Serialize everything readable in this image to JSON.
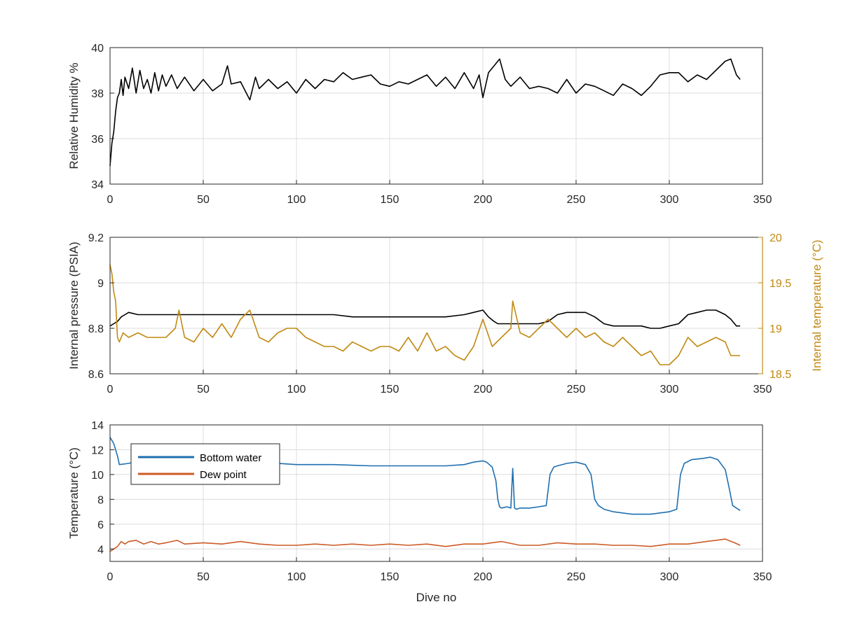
{
  "colors": {
    "humidity": "#000000",
    "pressure": "#000000",
    "internal_temperature": "#c08a12",
    "right_axis": "#c08a12",
    "bottom_water": "#1f6fb0",
    "dew_point": "#cc5b27"
  },
  "chart_data": [
    {
      "type": "line",
      "ylabel": "Relative Humidity %",
      "xlim": [
        0,
        350
      ],
      "ylim": [
        34,
        40
      ],
      "xticks": [
        0,
        50,
        100,
        150,
        200,
        250,
        300,
        350
      ],
      "yticks": [
        34,
        36,
        38,
        40
      ],
      "grid": true,
      "series": [
        {
          "x": [
            0,
            1,
            2,
            3,
            4,
            5,
            6,
            7,
            8,
            10,
            12,
            14,
            16,
            18,
            20,
            22,
            24,
            26,
            28,
            30,
            33,
            36,
            40,
            45,
            50,
            55,
            60,
            63,
            65,
            70,
            75,
            78,
            80,
            85,
            90,
            95,
            100,
            105,
            110,
            115,
            120,
            125,
            130,
            135,
            140,
            145,
            150,
            155,
            160,
            165,
            170,
            175,
            180,
            185,
            190,
            195,
            198,
            200,
            203,
            206,
            209,
            212,
            215,
            220,
            225,
            230,
            235,
            240,
            245,
            250,
            255,
            260,
            265,
            270,
            275,
            280,
            285,
            290,
            295,
            300,
            305,
            310,
            315,
            320,
            325,
            330,
            333,
            336,
            338
          ],
          "y": [
            34.8,
            35.8,
            36.3,
            37.2,
            37.8,
            38.0,
            38.6,
            37.9,
            38.7,
            38.2,
            39.1,
            38.0,
            39.0,
            38.2,
            38.6,
            38.0,
            38.9,
            38.1,
            38.8,
            38.3,
            38.8,
            38.2,
            38.7,
            38.1,
            38.6,
            38.1,
            38.4,
            39.2,
            38.4,
            38.5,
            37.7,
            38.7,
            38.2,
            38.6,
            38.2,
            38.5,
            38.0,
            38.6,
            38.2,
            38.6,
            38.5,
            38.9,
            38.6,
            38.7,
            38.8,
            38.4,
            38.3,
            38.5,
            38.4,
            38.6,
            38.8,
            38.3,
            38.7,
            38.2,
            38.9,
            38.2,
            38.8,
            37.8,
            38.9,
            39.2,
            39.5,
            38.6,
            38.3,
            38.7,
            38.2,
            38.3,
            38.2,
            38.0,
            38.6,
            38.0,
            38.4,
            38.3,
            38.1,
            37.9,
            38.4,
            38.2,
            37.9,
            38.3,
            38.8,
            38.9,
            38.9,
            38.5,
            38.8,
            38.6,
            39.0,
            39.4,
            39.5,
            38.8,
            38.6
          ]
        }
      ]
    },
    {
      "type": "line",
      "ylabel": "Internal pressure (PSIA)",
      "ylabel_right": "Internal temperature (°C)",
      "xlim": [
        0,
        350
      ],
      "ylim": [
        8.6,
        9.2
      ],
      "ylim_right": [
        18.5,
        20
      ],
      "xticks": [
        0,
        50,
        100,
        150,
        200,
        250,
        300,
        350
      ],
      "yticks": [
        8.6,
        8.8,
        9,
        9.2
      ],
      "yticks_right": [
        18.5,
        19,
        19.5,
        20
      ],
      "grid": true,
      "series": [
        {
          "axis": "left",
          "x": [
            0,
            2,
            4,
            6,
            8,
            10,
            15,
            20,
            30,
            40,
            50,
            60,
            70,
            80,
            90,
            100,
            110,
            120,
            130,
            140,
            150,
            160,
            170,
            180,
            190,
            195,
            200,
            203,
            206,
            208,
            210,
            212,
            215,
            220,
            225,
            230,
            235,
            240,
            245,
            250,
            255,
            260,
            265,
            270,
            275,
            280,
            285,
            290,
            295,
            300,
            305,
            310,
            315,
            320,
            325,
            330,
            333,
            336,
            338
          ],
          "y": [
            8.81,
            8.82,
            8.83,
            8.85,
            8.86,
            8.87,
            8.86,
            8.86,
            8.86,
            8.86,
            8.86,
            8.86,
            8.86,
            8.86,
            8.86,
            8.86,
            8.86,
            8.86,
            8.85,
            8.85,
            8.85,
            8.85,
            8.85,
            8.85,
            8.86,
            8.87,
            8.88,
            8.85,
            8.83,
            8.82,
            8.82,
            8.82,
            8.82,
            8.82,
            8.82,
            8.82,
            8.83,
            8.86,
            8.87,
            8.87,
            8.87,
            8.85,
            8.82,
            8.81,
            8.81,
            8.81,
            8.81,
            8.8,
            8.8,
            8.81,
            8.82,
            8.86,
            8.87,
            8.88,
            8.88,
            8.86,
            8.84,
            8.81,
            8.81
          ]
        },
        {
          "axis": "right",
          "x": [
            0,
            1,
            2,
            3,
            4,
            5,
            7,
            10,
            15,
            20,
            25,
            30,
            35,
            37,
            40,
            45,
            50,
            55,
            60,
            65,
            70,
            75,
            80,
            85,
            90,
            95,
            100,
            105,
            110,
            115,
            120,
            125,
            130,
            135,
            140,
            145,
            150,
            155,
            160,
            165,
            170,
            175,
            180,
            185,
            190,
            195,
            200,
            205,
            210,
            215,
            216,
            220,
            225,
            230,
            235,
            240,
            245,
            250,
            255,
            260,
            265,
            270,
            275,
            280,
            285,
            290,
            295,
            300,
            305,
            310,
            315,
            320,
            325,
            330,
            333,
            336,
            338
          ],
          "y": [
            19.7,
            19.6,
            19.4,
            19.3,
            18.9,
            18.85,
            18.95,
            18.9,
            18.95,
            18.9,
            18.9,
            18.9,
            19.0,
            19.2,
            18.9,
            18.85,
            19.0,
            18.9,
            19.05,
            18.9,
            19.1,
            19.2,
            18.9,
            18.85,
            18.95,
            19.0,
            19.0,
            18.9,
            18.85,
            18.8,
            18.8,
            18.75,
            18.85,
            18.8,
            18.75,
            18.8,
            18.8,
            18.75,
            18.9,
            18.75,
            18.95,
            18.75,
            18.8,
            18.7,
            18.65,
            18.8,
            19.1,
            18.8,
            18.9,
            19.0,
            19.3,
            18.95,
            18.9,
            19.0,
            19.1,
            19.0,
            18.9,
            19.0,
            18.9,
            18.95,
            18.85,
            18.8,
            18.9,
            18.8,
            18.7,
            18.75,
            18.6,
            18.6,
            18.7,
            18.9,
            18.8,
            18.85,
            18.9,
            18.85,
            18.7,
            18.7,
            18.7
          ]
        }
      ]
    },
    {
      "type": "line",
      "xlabel": "Dive no",
      "ylabel": "Temperature (°C)",
      "xlim": [
        0,
        350
      ],
      "ylim": [
        3,
        14
      ],
      "xticks": [
        0,
        50,
        100,
        150,
        200,
        250,
        300,
        350
      ],
      "yticks": [
        4,
        6,
        8,
        10,
        12,
        14
      ],
      "grid": true,
      "legend_position": "top-left",
      "series": [
        {
          "name": "Bottom water",
          "x": [
            0,
            2,
            4,
            5,
            10,
            15,
            20,
            40,
            60,
            80,
            100,
            120,
            140,
            160,
            180,
            190,
            195,
            200,
            202,
            205,
            207,
            208,
            209,
            210,
            213,
            215,
            216,
            217,
            218,
            220,
            225,
            230,
            234,
            236,
            238,
            240,
            245,
            250,
            255,
            258,
            260,
            262,
            265,
            270,
            280,
            290,
            300,
            304,
            306,
            308,
            312,
            318,
            322,
            326,
            328,
            330,
            332,
            334,
            336,
            338
          ],
          "y": [
            13.0,
            12.5,
            11.5,
            10.8,
            10.9,
            11.1,
            11.0,
            11.0,
            11.0,
            11.0,
            10.8,
            10.8,
            10.7,
            10.7,
            10.7,
            10.8,
            11.0,
            11.1,
            11.0,
            10.6,
            9.5,
            8.0,
            7.4,
            7.3,
            7.4,
            7.3,
            10.5,
            7.3,
            7.2,
            7.3,
            7.3,
            7.4,
            7.5,
            10.0,
            10.6,
            10.7,
            10.9,
            11.0,
            10.8,
            10.0,
            8.0,
            7.5,
            7.2,
            7.0,
            6.8,
            6.8,
            7.0,
            7.2,
            10.0,
            10.9,
            11.2,
            11.3,
            11.4,
            11.2,
            10.8,
            10.4,
            9.0,
            7.5,
            7.3,
            7.1
          ]
        },
        {
          "name": "Dew point",
          "x": [
            0,
            2,
            4,
            6,
            8,
            10,
            14,
            18,
            22,
            26,
            30,
            36,
            40,
            50,
            60,
            70,
            80,
            90,
            100,
            110,
            120,
            130,
            140,
            150,
            160,
            170,
            180,
            190,
            200,
            210,
            220,
            230,
            240,
            250,
            260,
            270,
            280,
            290,
            300,
            310,
            320,
            325,
            330,
            335,
            338
          ],
          "y": [
            3.8,
            4.0,
            4.2,
            4.6,
            4.4,
            4.6,
            4.7,
            4.4,
            4.6,
            4.4,
            4.5,
            4.7,
            4.4,
            4.5,
            4.4,
            4.6,
            4.4,
            4.3,
            4.3,
            4.4,
            4.3,
            4.4,
            4.3,
            4.4,
            4.3,
            4.4,
            4.2,
            4.4,
            4.4,
            4.6,
            4.3,
            4.3,
            4.5,
            4.4,
            4.4,
            4.3,
            4.3,
            4.2,
            4.4,
            4.4,
            4.6,
            4.7,
            4.8,
            4.5,
            4.3
          ]
        }
      ]
    }
  ]
}
